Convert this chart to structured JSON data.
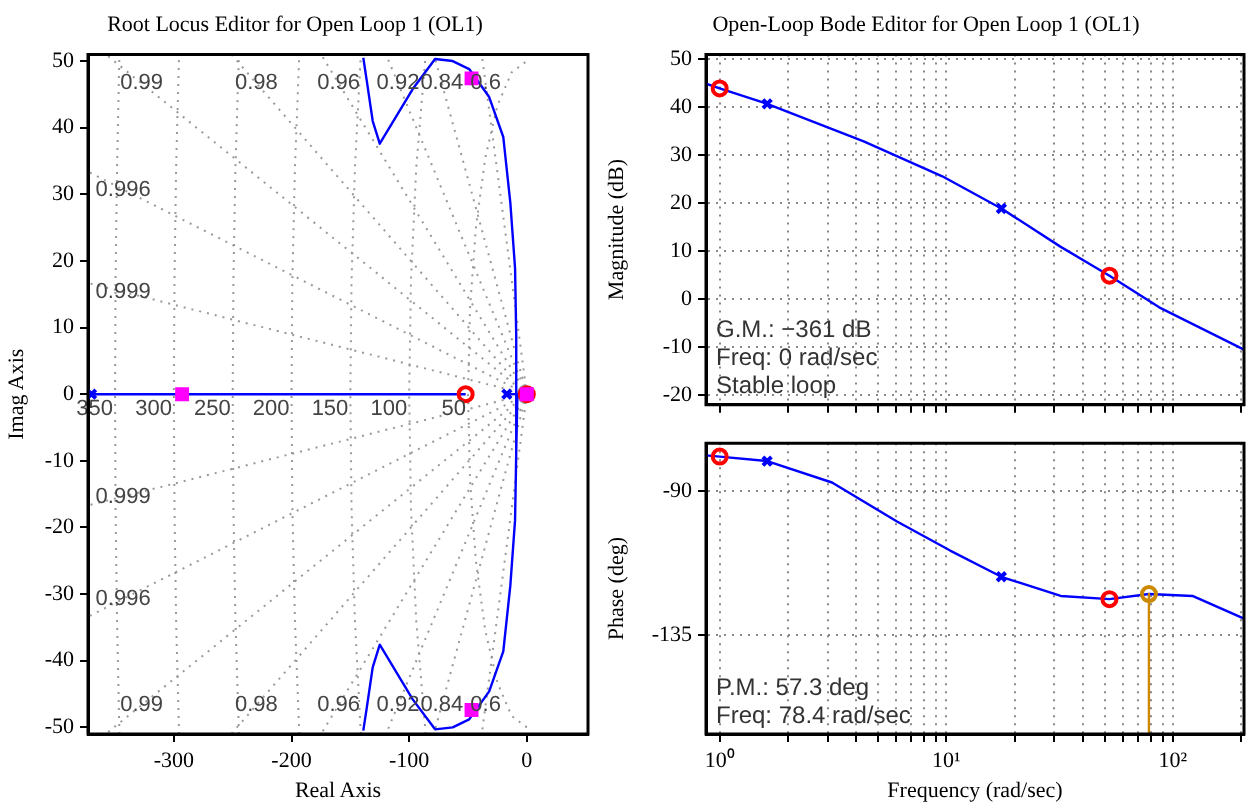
{
  "chart_data": [
    {
      "type": "line",
      "title": "Root Locus Editor for Open Loop 1 (OL1)",
      "xlabel": "Real Axis",
      "ylabel": "Imag Axis",
      "xlim": [
        -373,
        52
      ],
      "ylim": [
        -51,
        51
      ],
      "xticks": [
        -300,
        -200,
        -100,
        0
      ],
      "yticks": [
        -50,
        -40,
        -30,
        -20,
        -10,
        0,
        10,
        20,
        30,
        40,
        50
      ],
      "legend": false,
      "series": [
        {
          "name": "0.99",
          "line_style": "dotted",
          "color": "#999999",
          "x": [
            0,
            -357.9
          ],
          "values": [
            0,
            51
          ]
        },
        {
          "name": "0.98",
          "line_style": "dotted",
          "color": "#999999",
          "x": [
            0,
            -251.2
          ],
          "values": [
            0,
            51
          ]
        },
        {
          "name": "0.96",
          "line_style": "dotted",
          "color": "#999999",
          "x": [
            0,
            -174.9
          ],
          "values": [
            0,
            51
          ]
        },
        {
          "name": "0.92",
          "line_style": "dotted",
          "color": "#999999",
          "x": [
            0,
            -119.7
          ],
          "values": [
            0,
            51
          ]
        },
        {
          "name": "0.84",
          "line_style": "dotted",
          "color": "#999999",
          "x": [
            0,
            -79
          ],
          "values": [
            0,
            51
          ]
        },
        {
          "name": "0.6",
          "line_style": "dotted",
          "color": "#999999",
          "x": [
            0,
            -38.3
          ],
          "values": [
            0,
            51
          ]
        },
        {
          "name": "0.996",
          "line_style": "dotted",
          "color": "#999999",
          "x": [
            0,
            -373
          ],
          "values": [
            0,
            33.4
          ]
        },
        {
          "name": "0.999",
          "line_style": "dotted",
          "color": "#999999",
          "x": [
            0,
            -373
          ],
          "values": [
            0,
            16.7
          ]
        },
        {
          "name": "0.999",
          "line_style": "dotted",
          "color": "#999999",
          "x": [
            0,
            -373
          ],
          "values": [
            0,
            -16.7
          ]
        },
        {
          "name": "0.996",
          "line_style": "dotted",
          "color": "#999999",
          "x": [
            0,
            -373
          ],
          "values": [
            0,
            -33.4
          ]
        },
        {
          "name": "0.99",
          "line_style": "dotted",
          "color": "#999999",
          "x": [
            0,
            -357.9
          ],
          "values": [
            0,
            -51
          ]
        },
        {
          "name": "0.98",
          "line_style": "dotted",
          "color": "#999999",
          "x": [
            0,
            -251.2
          ],
          "values": [
            0,
            -51
          ]
        },
        {
          "name": "0.96",
          "line_style": "dotted",
          "color": "#999999",
          "x": [
            0,
            -174.9
          ],
          "values": [
            0,
            -51
          ]
        },
        {
          "name": "0.92",
          "line_style": "dotted",
          "color": "#999999",
          "x": [
            0,
            -119.7
          ],
          "values": [
            0,
            -51
          ]
        },
        {
          "name": "0.84",
          "line_style": "dotted",
          "color": "#999999",
          "x": [
            0,
            -79
          ],
          "values": [
            0,
            -51
          ]
        },
        {
          "name": "0.6",
          "line_style": "dotted",
          "color": "#999999",
          "x": [
            0,
            -38.3
          ],
          "values": [
            0,
            -51
          ]
        },
        {
          "name": "350",
          "line_style": "dotted",
          "color": "#999999",
          "x": [
            -346.3,
            -348.3,
            -349.6,
            -350,
            -349.6,
            -348.3,
            -346.3
          ],
          "values": [
            -51,
            -34,
            -17,
            0,
            17,
            34,
            51
          ]
        },
        {
          "name": "300",
          "line_style": "dotted",
          "color": "#999999",
          "x": [
            -295.6,
            -298.1,
            -299.5,
            -300,
            -299.5,
            -298.1,
            -295.6
          ],
          "values": [
            -51,
            -34,
            -17,
            0,
            17,
            34,
            51
          ]
        },
        {
          "name": "250",
          "line_style": "dotted",
          "color": "#999999",
          "x": [
            -244.7,
            -247.7,
            -249.4,
            -250,
            -249.4,
            -247.7,
            -244.7
          ],
          "values": [
            -51,
            -34,
            -17,
            0,
            17,
            34,
            51
          ]
        },
        {
          "name": "200",
          "line_style": "dotted",
          "color": "#999999",
          "x": [
            -193.4,
            -197.1,
            -199.3,
            -200,
            -199.3,
            -197.1,
            -193.4
          ],
          "values": [
            -51,
            -34,
            -17,
            0,
            17,
            34,
            51
          ]
        },
        {
          "name": "150",
          "line_style": "dotted",
          "color": "#999999",
          "x": [
            -141.1,
            -146.1,
            -149,
            -150,
            -149,
            -146.1,
            -141.1
          ],
          "values": [
            -51,
            -34,
            -17,
            0,
            17,
            34,
            51
          ]
        },
        {
          "name": "100",
          "line_style": "dotted",
          "color": "#999999",
          "x": [
            -86,
            -94,
            -98.5,
            -100,
            -98.5,
            -94,
            -86
          ],
          "values": [
            -51,
            -34,
            -17,
            0,
            17,
            34,
            51
          ]
        },
        {
          "name": "50",
          "line_style": "dotted",
          "color": "#999999",
          "x": [
            0,
            -12.9,
            -25,
            -35.4,
            -43.3,
            -48.3,
            -50,
            -48.3,
            -43.3,
            -35.4,
            -25,
            -12.9,
            0
          ],
          "values": [
            -50,
            -48.3,
            -43.3,
            -35.4,
            -25,
            -12.9,
            0,
            12.9,
            25,
            35.4,
            43.3,
            48.3,
            50
          ]
        },
        {
          "color": "#0000ff",
          "x": [
            -373,
            -52
          ],
          "values": [
            0,
            0
          ]
        },
        {
          "color": "#0000ff",
          "x": [
            -17,
            0
          ],
          "values": [
            0,
            0
          ]
        },
        {
          "color": "#0000ff",
          "x": [
            -8,
            -9,
            -10,
            -14,
            -20,
            -32,
            -49,
            -63,
            -78,
            -97,
            -125,
            -131,
            -136,
            -139
          ],
          "values": [
            0,
            8.7,
            18.9,
            28.7,
            38.6,
            44.6,
            48.8,
            50,
            50.3,
            45.8,
            37.6,
            41,
            47,
            50.5
          ]
        },
        {
          "color": "#0000ff",
          "x": [
            -8,
            -9,
            -10,
            -14,
            -20,
            -32,
            -49,
            -63,
            -78,
            -97,
            -125,
            -131,
            -136,
            -139
          ],
          "values": [
            0,
            -8.7,
            -18.9,
            -28.7,
            -38.6,
            -44.6,
            -48.8,
            -50,
            -50.3,
            -45.8,
            -37.6,
            -41,
            -47,
            -50.5
          ]
        },
        {
          "type": "scatter",
          "marker": "cross",
          "color": "#0000ff",
          "x": [
            -370,
            -17
          ],
          "values": [
            0,
            0
          ]
        },
        {
          "type": "scatter",
          "marker": "circle",
          "color": "#ff0000",
          "x": [
            -52,
            0
          ],
          "values": [
            0,
            0
          ]
        },
        {
          "type": "scatter",
          "marker": "square",
          "color": "#ff00ff",
          "x": [
            -293,
            -47,
            -47,
            0
          ],
          "values": [
            0,
            47.4,
            -47.4,
            0
          ]
        }
      ]
    },
    {
      "type": "line",
      "title": "Open-Loop Bode Editor for Open Loop 1 (OL1)",
      "ylabel": "Magnitude (dB)",
      "log": "x",
      "xlim": [
        0.87,
        206
      ],
      "ylim": [
        -22,
        51
      ],
      "tick_labels": "y",
      "grid": true,
      "legend": false,
      "xticks": [
        {
          "value": 1,
          "label": null
        },
        {
          "value": 2,
          "label": null
        },
        {
          "value": 3,
          "label": null
        },
        {
          "value": 4,
          "label": null
        },
        {
          "value": 5,
          "label": null
        },
        {
          "value": 6,
          "label": null
        },
        {
          "value": 7,
          "label": null
        },
        {
          "value": 8,
          "label": null
        },
        {
          "value": 9,
          "label": null
        },
        {
          "value": 10,
          "label": null
        },
        {
          "value": 20,
          "label": null
        },
        {
          "value": 30,
          "label": null
        },
        {
          "value": 40,
          "label": null
        },
        {
          "value": 50,
          "label": null
        },
        {
          "value": 60,
          "label": null
        },
        {
          "value": 70,
          "label": null
        },
        {
          "value": 80,
          "label": null
        },
        {
          "value": 90,
          "label": null
        },
        {
          "value": 100,
          "label": null
        },
        {
          "value": 200,
          "label": null
        }
      ],
      "yticks": [
        -20,
        -10,
        0,
        10,
        20,
        30,
        40,
        50
      ],
      "series": [
        {
          "color": "#0000ff",
          "x": [
            0.87,
            1,
            1.62,
            4.32,
            9.6,
            17.5,
            32,
            52.5,
            87,
            206
          ],
          "values": [
            44.9,
            43.9,
            40.7,
            32.9,
            25.6,
            18.9,
            10.9,
            4.9,
            -1.7,
            -10.5
          ]
        },
        {
          "type": "scatter",
          "marker": "circle",
          "color": "#ff0000",
          "x": [
            1,
            52.5
          ],
          "values": [
            43.9,
            4.9
          ]
        },
        {
          "type": "scatter",
          "marker": "cross",
          "color": "#0000ff",
          "x": [
            1.62,
            17.5
          ],
          "values": [
            40.7,
            18.9
          ]
        }
      ],
      "annotations": [
        "G.M.: −361 dB",
        "Freq: 0 rad/sec",
        "Stable loop"
      ]
    },
    {
      "type": "line",
      "xlabel": "Frequency (rad/sec)",
      "ylabel": "Phase (deg)",
      "log": "x",
      "xlim": [
        0.87,
        206
      ],
      "ylim": [
        -166,
        -75
      ],
      "grid": true,
      "legend": false,
      "xticks": [
        {
          "value": 1,
          "label": "10⁰"
        },
        {
          "value": 2,
          "label": null
        },
        {
          "value": 3,
          "label": null
        },
        {
          "value": 4,
          "label": null
        },
        {
          "value": 5,
          "label": null
        },
        {
          "value": 6,
          "label": null
        },
        {
          "value": 7,
          "label": null
        },
        {
          "value": 8,
          "label": null
        },
        {
          "value": 9,
          "label": null
        },
        {
          "value": 10,
          "label": "10¹"
        },
        {
          "value": 20,
          "label": null
        },
        {
          "value": 30,
          "label": null
        },
        {
          "value": 40,
          "label": null
        },
        {
          "value": 50,
          "label": null
        },
        {
          "value": 60,
          "label": null
        },
        {
          "value": 70,
          "label": null
        },
        {
          "value": 80,
          "label": null
        },
        {
          "value": 90,
          "label": null
        },
        {
          "value": 100,
          "label": "10²"
        },
        {
          "value": 200,
          "label": null
        }
      ],
      "yticks": [
        -135,
        -90
      ],
      "series": [
        {
          "color": "#0000ff",
          "x": [
            0.87,
            1,
            1.62,
            3.13,
            6.06,
            10.4,
            17.5,
            32,
            52.5,
            78.4,
            122,
            206
          ],
          "values": [
            -78.8,
            -79.2,
            -80.6,
            -87.3,
            -99.5,
            -108.6,
            -116.8,
            -122.8,
            -123.8,
            -122.2,
            -122.8,
            -129.9
          ]
        },
        {
          "type": "scatter",
          "marker": "circle",
          "color": "#ff0000",
          "x": [
            1,
            52.5
          ],
          "values": [
            -79.2,
            -123.8
          ]
        },
        {
          "type": "scatter",
          "marker": "cross",
          "color": "#0000ff",
          "x": [
            1.62,
            17.5
          ],
          "values": [
            -80.6,
            -116.8
          ]
        },
        {
          "color": "#cc8800",
          "x": [
            78.4,
            78.4
          ],
          "values": [
            -122.2,
            -166
          ]
        },
        {
          "type": "scatter",
          "marker": "circle",
          "color": "#cc8800",
          "x": [
            78.4
          ],
          "values": [
            -122.2
          ]
        }
      ],
      "annotations": [
        "P.M.: 57.3 deg",
        "Freq: 78.4 rad/sec"
      ]
    }
  ]
}
